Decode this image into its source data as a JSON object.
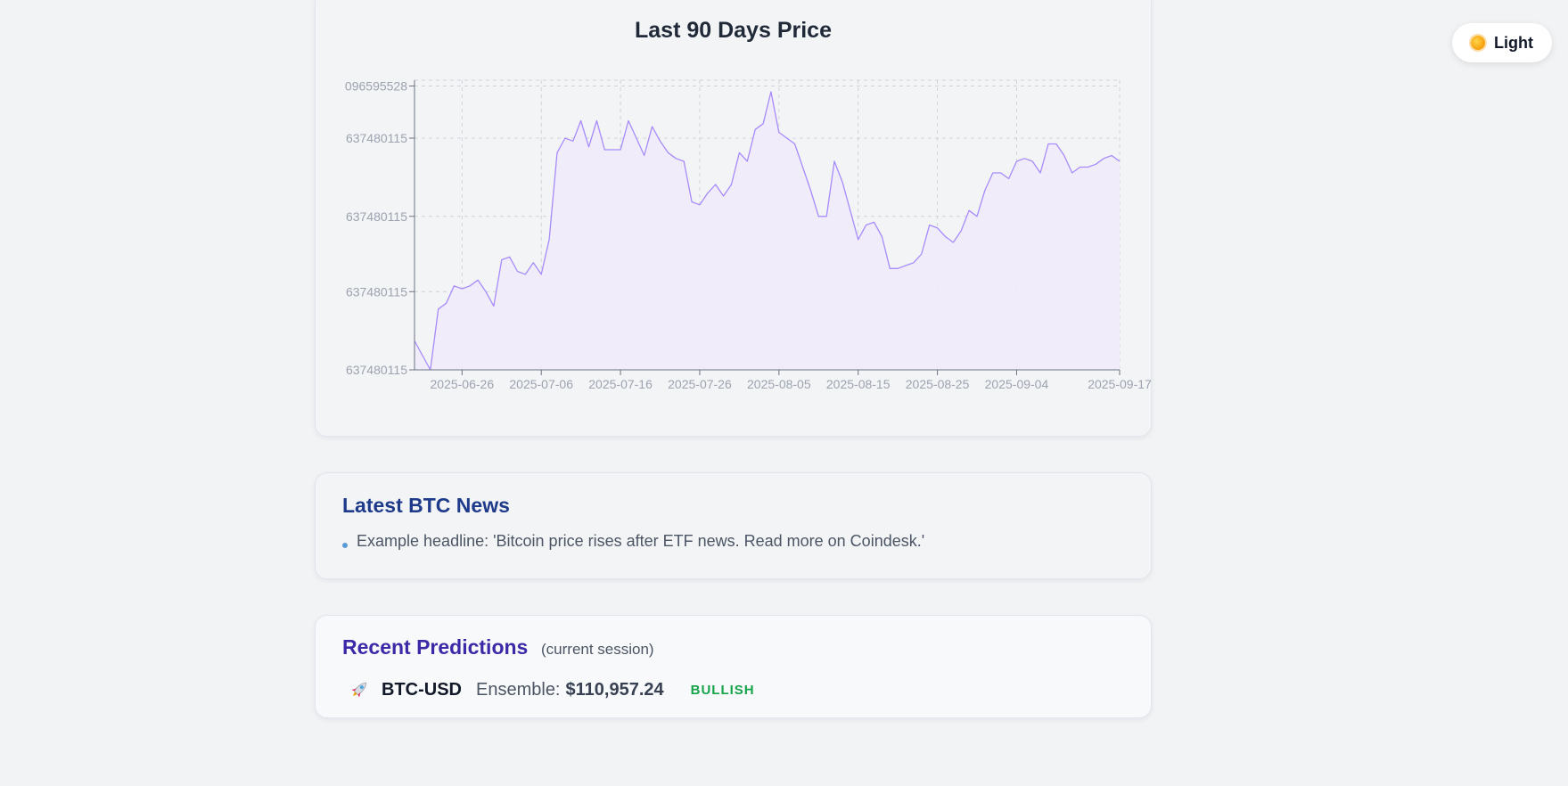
{
  "theme_toggle": {
    "label": "Light",
    "icon": "sun-icon"
  },
  "price_chart": {
    "title": "Last 90 Days Price"
  },
  "news": {
    "title": "Latest BTC News",
    "items": [
      "Example headline: 'Bitcoin price rises after ETF news. Read more on Coindesk.'"
    ]
  },
  "predictions": {
    "title": "Recent Predictions",
    "subtitle": "(current session)",
    "rows": [
      {
        "icon": "rocket-icon",
        "ticker": "BTC-USD",
        "label": "Ensemble:",
        "value": "$110,957.24",
        "signal": "BULLISH"
      }
    ]
  },
  "colors": {
    "line": "#a78bfa",
    "fill": "#f1ebfb",
    "grid": "#cfd3da",
    "bullish": "#16a34a",
    "news_title": "#1e3a8a",
    "pred_title": "#3b2aa8"
  },
  "chart_data": {
    "type": "area",
    "title": "Last 90 Days Price",
    "x_ticks": [
      "2025-06-26",
      "2025-07-06",
      "2025-07-16",
      "2025-07-26",
      "2025-08-05",
      "2025-08-15",
      "2025-08-25",
      "2025-09-04",
      "2025-09-17"
    ],
    "y_ticks": [
      "096595528",
      "637480115",
      "637480115",
      "637480115",
      "637480115"
    ],
    "xlim": [
      "2025-06-20",
      "2025-09-17"
    ],
    "grid": true,
    "legend": "none",
    "series": [
      {
        "x": [
          "2025-06-20",
          "2025-06-22",
          "2025-06-23",
          "2025-06-24",
          "2025-06-25",
          "2025-06-26",
          "2025-06-27",
          "2025-06-28",
          "2025-06-29",
          "2025-06-30",
          "2025-07-01",
          "2025-07-02",
          "2025-07-03",
          "2025-07-04",
          "2025-07-05",
          "2025-07-06",
          "2025-07-07",
          "2025-07-08",
          "2025-07-09",
          "2025-07-10",
          "2025-07-11",
          "2025-07-12",
          "2025-07-13",
          "2025-07-14",
          "2025-07-15",
          "2025-07-16",
          "2025-07-17",
          "2025-07-18",
          "2025-07-19",
          "2025-07-20",
          "2025-07-21",
          "2025-07-22",
          "2025-07-23",
          "2025-07-24",
          "2025-07-25",
          "2025-07-26",
          "2025-07-27",
          "2025-07-28",
          "2025-07-29",
          "2025-07-30",
          "2025-07-31",
          "2025-08-01",
          "2025-08-02",
          "2025-08-03",
          "2025-08-04",
          "2025-08-05",
          "2025-08-06",
          "2025-08-07",
          "2025-08-08",
          "2025-08-09",
          "2025-08-10",
          "2025-08-11",
          "2025-08-12",
          "2025-08-13",
          "2025-08-14",
          "2025-08-15",
          "2025-08-16",
          "2025-08-17",
          "2025-08-18",
          "2025-08-19",
          "2025-08-20",
          "2025-08-21",
          "2025-08-22",
          "2025-08-23",
          "2025-08-24",
          "2025-08-25",
          "2025-08-26",
          "2025-08-27",
          "2025-08-28",
          "2025-08-29",
          "2025-08-30",
          "2025-08-31",
          "2025-09-01",
          "2025-09-02",
          "2025-09-03",
          "2025-09-04",
          "2025-09-05",
          "2025-09-06",
          "2025-09-07",
          "2025-09-08",
          "2025-09-09",
          "2025-09-10",
          "2025-09-11",
          "2025-09-12",
          "2025-09-13",
          "2025-09-14",
          "2025-09-15",
          "2025-09-16",
          "2025-09-17"
        ],
        "y": [
          0.1,
          0.0,
          0.21,
          0.23,
          0.29,
          0.28,
          0.29,
          0.31,
          0.27,
          0.22,
          0.38,
          0.39,
          0.34,
          0.33,
          0.37,
          0.33,
          0.45,
          0.75,
          0.8,
          0.79,
          0.86,
          0.77,
          0.86,
          0.76,
          0.76,
          0.76,
          0.86,
          0.8,
          0.74,
          0.84,
          0.79,
          0.75,
          0.73,
          0.72,
          0.58,
          0.57,
          0.61,
          0.64,
          0.6,
          0.64,
          0.75,
          0.72,
          0.83,
          0.85,
          0.96,
          0.82,
          0.8,
          0.78,
          0.7,
          0.62,
          0.53,
          0.53,
          0.72,
          0.65,
          0.55,
          0.45,
          0.5,
          0.51,
          0.46,
          0.35,
          0.35,
          0.36,
          0.37,
          0.4,
          0.5,
          0.49,
          0.46,
          0.44,
          0.48,
          0.55,
          0.53,
          0.62,
          0.68,
          0.68,
          0.66,
          0.72,
          0.73,
          0.72,
          0.68,
          0.78,
          0.78,
          0.74,
          0.68,
          0.7,
          0.7,
          0.71,
          0.73,
          0.74,
          0.72
        ]
      }
    ]
  }
}
